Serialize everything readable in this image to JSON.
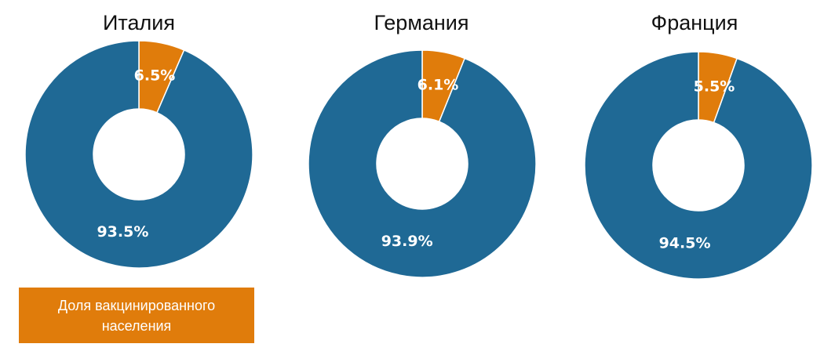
{
  "colors": {
    "vaccinated": "#e07c0b",
    "rest": "#1f6995",
    "background": "#ffffff"
  },
  "legend": {
    "label": "Доля вакцинированного населения"
  },
  "chart_data": [
    {
      "type": "pie",
      "title": "Италия",
      "slices": [
        {
          "label": "6.5%",
          "value": 6.5,
          "color": "#e07c0b"
        },
        {
          "label": "93.5%",
          "value": 93.5,
          "color": "#1f6995"
        }
      ]
    },
    {
      "type": "pie",
      "title": "Германия",
      "slices": [
        {
          "label": "6.1%",
          "value": 6.1,
          "color": "#e07c0b"
        },
        {
          "label": "93.9%",
          "value": 93.9,
          "color": "#1f6995"
        }
      ]
    },
    {
      "type": "pie",
      "title": "Франция",
      "slices": [
        {
          "label": "5.5%",
          "value": 5.5,
          "color": "#e07c0b"
        },
        {
          "label": "94.5%",
          "value": 94.5,
          "color": "#1f6995"
        }
      ]
    }
  ]
}
